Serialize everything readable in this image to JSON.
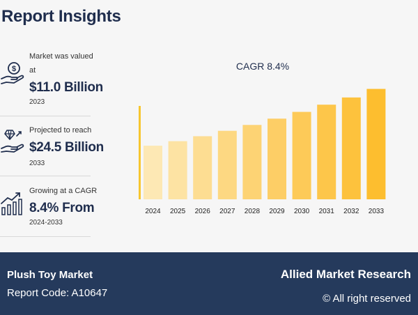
{
  "title": "Report Insights",
  "stats": [
    {
      "label": "Market was valued",
      "label2": "at",
      "value": "$11.0 Billion",
      "year": "2023",
      "icon": "money-hand-icon"
    },
    {
      "label": "Projected to reach",
      "value": "$24.5 Billion",
      "year": "2033",
      "icon": "diamond-hand-icon"
    },
    {
      "label": "Growing at a CAGR",
      "value": "8.4% From",
      "year": "2024-2033",
      "icon": "growth-chart-icon"
    }
  ],
  "chart_data": {
    "type": "bar",
    "title": "CAGR 8.4%",
    "categories": [
      "2024",
      "2025",
      "2026",
      "2027",
      "2028",
      "2029",
      "2030",
      "2031",
      "2032",
      "2033"
    ],
    "values": [
      11.9,
      12.9,
      14.0,
      15.2,
      16.5,
      17.9,
      19.4,
      21.0,
      22.6,
      24.5
    ],
    "bar_colors": [
      "#fde8b4",
      "#fde3a3",
      "#fddd92",
      "#fdd882",
      "#fdd374",
      "#fdce66",
      "#fdca58",
      "#fdc64a",
      "#fdc23d",
      "#fdbe2f"
    ],
    "axis_color": "#f7c62f",
    "xlabel": "",
    "ylabel": "",
    "ylim": [
      0,
      30
    ]
  },
  "footer": {
    "market": "Plush Toy Market",
    "report_code": "Report Code: A10647",
    "brand": "Allied Market Research",
    "rights": "© All right reserved"
  }
}
